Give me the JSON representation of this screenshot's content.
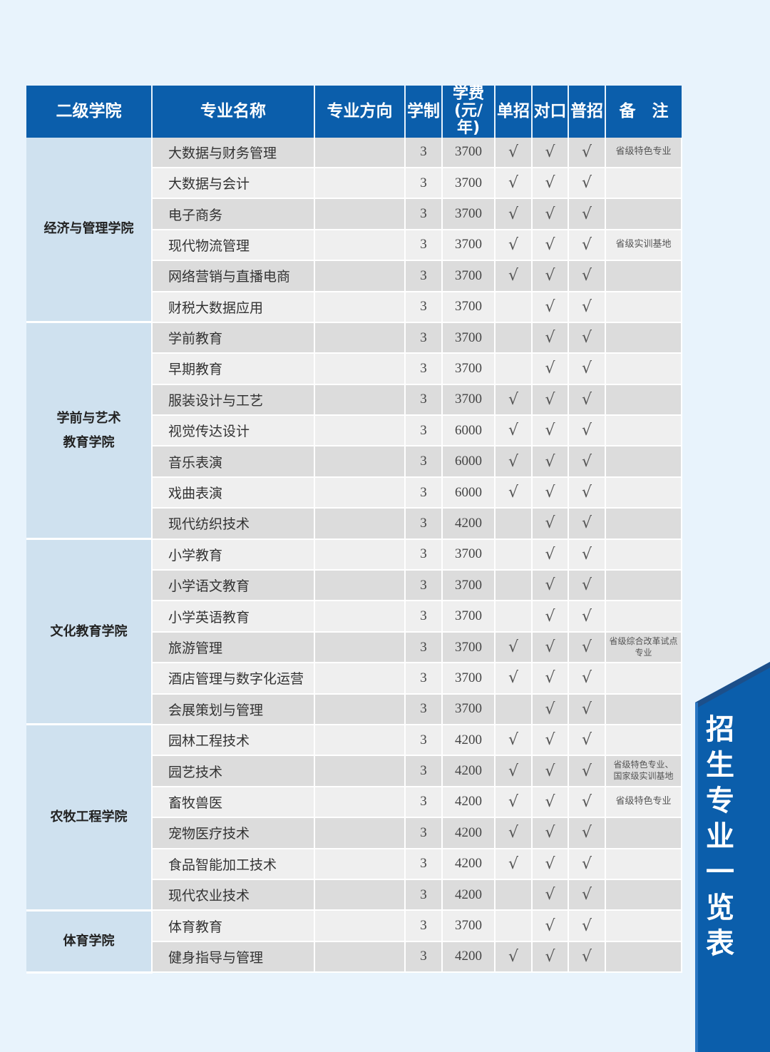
{
  "headers": [
    "二级学院",
    "专业名称",
    "专业方向",
    "学制",
    "学费\n(元/年)",
    "单招",
    "对口",
    "普招",
    "备　注"
  ],
  "check_mark": "√",
  "groups": [
    {
      "college": "经济与管理学院",
      "rows": [
        {
          "name": "大数据与财务管理",
          "direction": "",
          "years": "3",
          "fee": "3700",
          "dan": true,
          "dui": true,
          "pu": true,
          "note": "省级特色专业"
        },
        {
          "name": "大数据与会计",
          "direction": "",
          "years": "3",
          "fee": "3700",
          "dan": true,
          "dui": true,
          "pu": true,
          "note": ""
        },
        {
          "name": "电子商务",
          "direction": "",
          "years": "3",
          "fee": "3700",
          "dan": true,
          "dui": true,
          "pu": true,
          "note": ""
        },
        {
          "name": "现代物流管理",
          "direction": "",
          "years": "3",
          "fee": "3700",
          "dan": true,
          "dui": true,
          "pu": true,
          "note": "省级实训基地"
        },
        {
          "name": "网络营销与直播电商",
          "direction": "",
          "years": "3",
          "fee": "3700",
          "dan": true,
          "dui": true,
          "pu": true,
          "note": ""
        },
        {
          "name": "财税大数据应用",
          "direction": "",
          "years": "3",
          "fee": "3700",
          "dan": false,
          "dui": true,
          "pu": true,
          "note": ""
        }
      ]
    },
    {
      "college": "学前与艺术\n教育学院",
      "rows": [
        {
          "name": "学前教育",
          "direction": "",
          "years": "3",
          "fee": "3700",
          "dan": false,
          "dui": true,
          "pu": true,
          "note": ""
        },
        {
          "name": "早期教育",
          "direction": "",
          "years": "3",
          "fee": "3700",
          "dan": false,
          "dui": true,
          "pu": true,
          "note": ""
        },
        {
          "name": "服装设计与工艺",
          "direction": "",
          "years": "3",
          "fee": "3700",
          "dan": true,
          "dui": true,
          "pu": true,
          "note": ""
        },
        {
          "name": "视觉传达设计",
          "direction": "",
          "years": "3",
          "fee": "6000",
          "dan": true,
          "dui": true,
          "pu": true,
          "note": ""
        },
        {
          "name": "音乐表演",
          "direction": "",
          "years": "3",
          "fee": "6000",
          "dan": true,
          "dui": true,
          "pu": true,
          "note": ""
        },
        {
          "name": "戏曲表演",
          "direction": "",
          "years": "3",
          "fee": "6000",
          "dan": true,
          "dui": true,
          "pu": true,
          "note": ""
        },
        {
          "name": "现代纺织技术",
          "direction": "",
          "years": "3",
          "fee": "4200",
          "dan": false,
          "dui": true,
          "pu": true,
          "note": ""
        }
      ]
    },
    {
      "college": "文化教育学院",
      "rows": [
        {
          "name": "小学教育",
          "direction": "",
          "years": "3",
          "fee": "3700",
          "dan": false,
          "dui": true,
          "pu": true,
          "note": ""
        },
        {
          "name": "小学语文教育",
          "direction": "",
          "years": "3",
          "fee": "3700",
          "dan": false,
          "dui": true,
          "pu": true,
          "note": ""
        },
        {
          "name": "小学英语教育",
          "direction": "",
          "years": "3",
          "fee": "3700",
          "dan": false,
          "dui": true,
          "pu": true,
          "note": ""
        },
        {
          "name": "旅游管理",
          "direction": "",
          "years": "3",
          "fee": "3700",
          "dan": true,
          "dui": true,
          "pu": true,
          "note": "省级综合改革试点专业"
        },
        {
          "name": "酒店管理与数字化运营",
          "direction": "",
          "years": "3",
          "fee": "3700",
          "dan": true,
          "dui": true,
          "pu": true,
          "note": ""
        },
        {
          "name": "会展策划与管理",
          "direction": "",
          "years": "3",
          "fee": "3700",
          "dan": false,
          "dui": true,
          "pu": true,
          "note": ""
        }
      ]
    },
    {
      "college": "农牧工程学院",
      "rows": [
        {
          "name": "园林工程技术",
          "direction": "",
          "years": "3",
          "fee": "4200",
          "dan": true,
          "dui": true,
          "pu": true,
          "note": ""
        },
        {
          "name": "园艺技术",
          "direction": "",
          "years": "3",
          "fee": "4200",
          "dan": true,
          "dui": true,
          "pu": true,
          "note": "省级特色专业、\n国家级实训基地"
        },
        {
          "name": "畜牧兽医",
          "direction": "",
          "years": "3",
          "fee": "4200",
          "dan": true,
          "dui": true,
          "pu": true,
          "note": "省级特色专业"
        },
        {
          "name": "宠物医疗技术",
          "direction": "",
          "years": "3",
          "fee": "4200",
          "dan": true,
          "dui": true,
          "pu": true,
          "note": ""
        },
        {
          "name": "食品智能加工技术",
          "direction": "",
          "years": "3",
          "fee": "4200",
          "dan": true,
          "dui": true,
          "pu": true,
          "note": ""
        },
        {
          "name": "现代农业技术",
          "direction": "",
          "years": "3",
          "fee": "4200",
          "dan": false,
          "dui": true,
          "pu": true,
          "note": ""
        }
      ]
    },
    {
      "college": "体育学院",
      "rows": [
        {
          "name": "体育教育",
          "direction": "",
          "years": "3",
          "fee": "3700",
          "dan": false,
          "dui": true,
          "pu": true,
          "note": ""
        },
        {
          "name": "健身指导与管理",
          "direction": "",
          "years": "3",
          "fee": "4200",
          "dan": true,
          "dui": true,
          "pu": true,
          "note": ""
        }
      ]
    }
  ],
  "banner": {
    "title": "招生专业一览表",
    "color": "#0b5eab"
  }
}
